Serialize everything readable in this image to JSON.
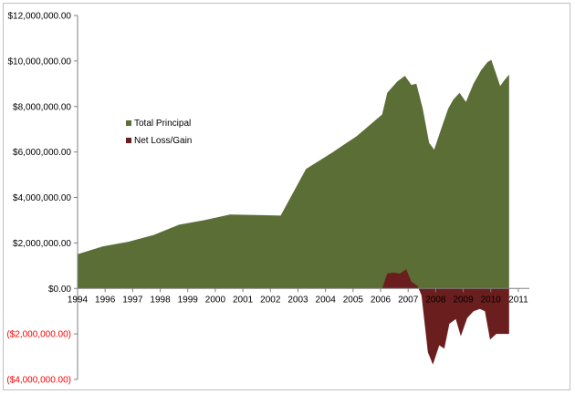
{
  "chart_data": {
    "type": "area",
    "title": "",
    "xlabel": "",
    "ylabel": "",
    "ylim": [
      -4000000,
      12000000
    ],
    "yticks": [
      12000000,
      10000000,
      8000000,
      6000000,
      4000000,
      2000000,
      0,
      -2000000,
      -4000000
    ],
    "ytick_labels": [
      "$12,000,000.00",
      "$10,000,000.00",
      "$8,000,000.00",
      "$6,000,000.00",
      "$4,000,000.00",
      "$2,000,000.00",
      "$0.00",
      "($2,000,000.00)",
      "($4,000,000.00)"
    ],
    "negative_tick_color": "#ff0000",
    "xlim": [
      1994.0,
      2011.8
    ],
    "xticks": [
      1994,
      1996,
      1997,
      1998,
      1999,
      2000,
      2001,
      2002,
      2003,
      2004,
      2005,
      2006,
      2007,
      2008,
      2009,
      2010,
      2011
    ],
    "xtick_labels": [
      "1994",
      "1996",
      "1997",
      "1998",
      "1999",
      "2000",
      "2001",
      "2002",
      "2003",
      "2004",
      "2005",
      "2006",
      "2007",
      "2008",
      "2009",
      "2010",
      "2011"
    ],
    "grid": false,
    "legend_position": "left",
    "series": [
      {
        "name": "Total Principal",
        "color": "#5a6e36",
        "points": [
          [
            1994.0,
            1500000
          ],
          [
            1995.0,
            1850000
          ],
          [
            1996.0,
            2050000
          ],
          [
            1997.0,
            2350000
          ],
          [
            1998.0,
            2800000
          ],
          [
            1999.0,
            3000000
          ],
          [
            2000.0,
            3250000
          ],
          [
            2001.0,
            3230000
          ],
          [
            2002.0,
            3200000
          ],
          [
            2003.0,
            5250000
          ],
          [
            2004.0,
            5950000
          ],
          [
            2005.0,
            6700000
          ],
          [
            2006.0,
            7650000
          ],
          [
            2006.2,
            8600000
          ],
          [
            2006.6,
            9100000
          ],
          [
            2006.9,
            9350000
          ],
          [
            2007.15,
            8950000
          ],
          [
            2007.35,
            9000000
          ],
          [
            2007.6,
            7900000
          ],
          [
            2007.85,
            6400000
          ],
          [
            2008.05,
            6100000
          ],
          [
            2008.35,
            7100000
          ],
          [
            2008.6,
            7900000
          ],
          [
            2008.8,
            8300000
          ],
          [
            2009.05,
            8600000
          ],
          [
            2009.3,
            8200000
          ],
          [
            2009.6,
            9000000
          ],
          [
            2009.9,
            9600000
          ],
          [
            2010.15,
            9950000
          ],
          [
            2010.3,
            10050000
          ],
          [
            2010.5,
            9400000
          ],
          [
            2010.65,
            8900000
          ],
          [
            2010.85,
            9200000
          ],
          [
            2011.0,
            9400000
          ]
        ]
      },
      {
        "name": "Net Loss/Gain",
        "color": "#6b1e1e",
        "points": [
          [
            2006.0,
            0
          ],
          [
            2006.2,
            650000
          ],
          [
            2006.45,
            700000
          ],
          [
            2006.7,
            650000
          ],
          [
            2006.95,
            850000
          ],
          [
            2007.15,
            300000
          ],
          [
            2007.4,
            100000
          ],
          [
            2007.55,
            -300000
          ],
          [
            2007.8,
            -2800000
          ],
          [
            2008.0,
            -3350000
          ],
          [
            2008.25,
            -2500000
          ],
          [
            2008.45,
            -2650000
          ],
          [
            2008.65,
            -1550000
          ],
          [
            2008.9,
            -1350000
          ],
          [
            2009.1,
            -2100000
          ],
          [
            2009.35,
            -1300000
          ],
          [
            2009.6,
            -1000000
          ],
          [
            2009.85,
            -900000
          ],
          [
            2010.05,
            -1000000
          ],
          [
            2010.25,
            -2250000
          ],
          [
            2010.5,
            -2000000
          ],
          [
            2011.0,
            -2000000
          ]
        ]
      }
    ]
  }
}
